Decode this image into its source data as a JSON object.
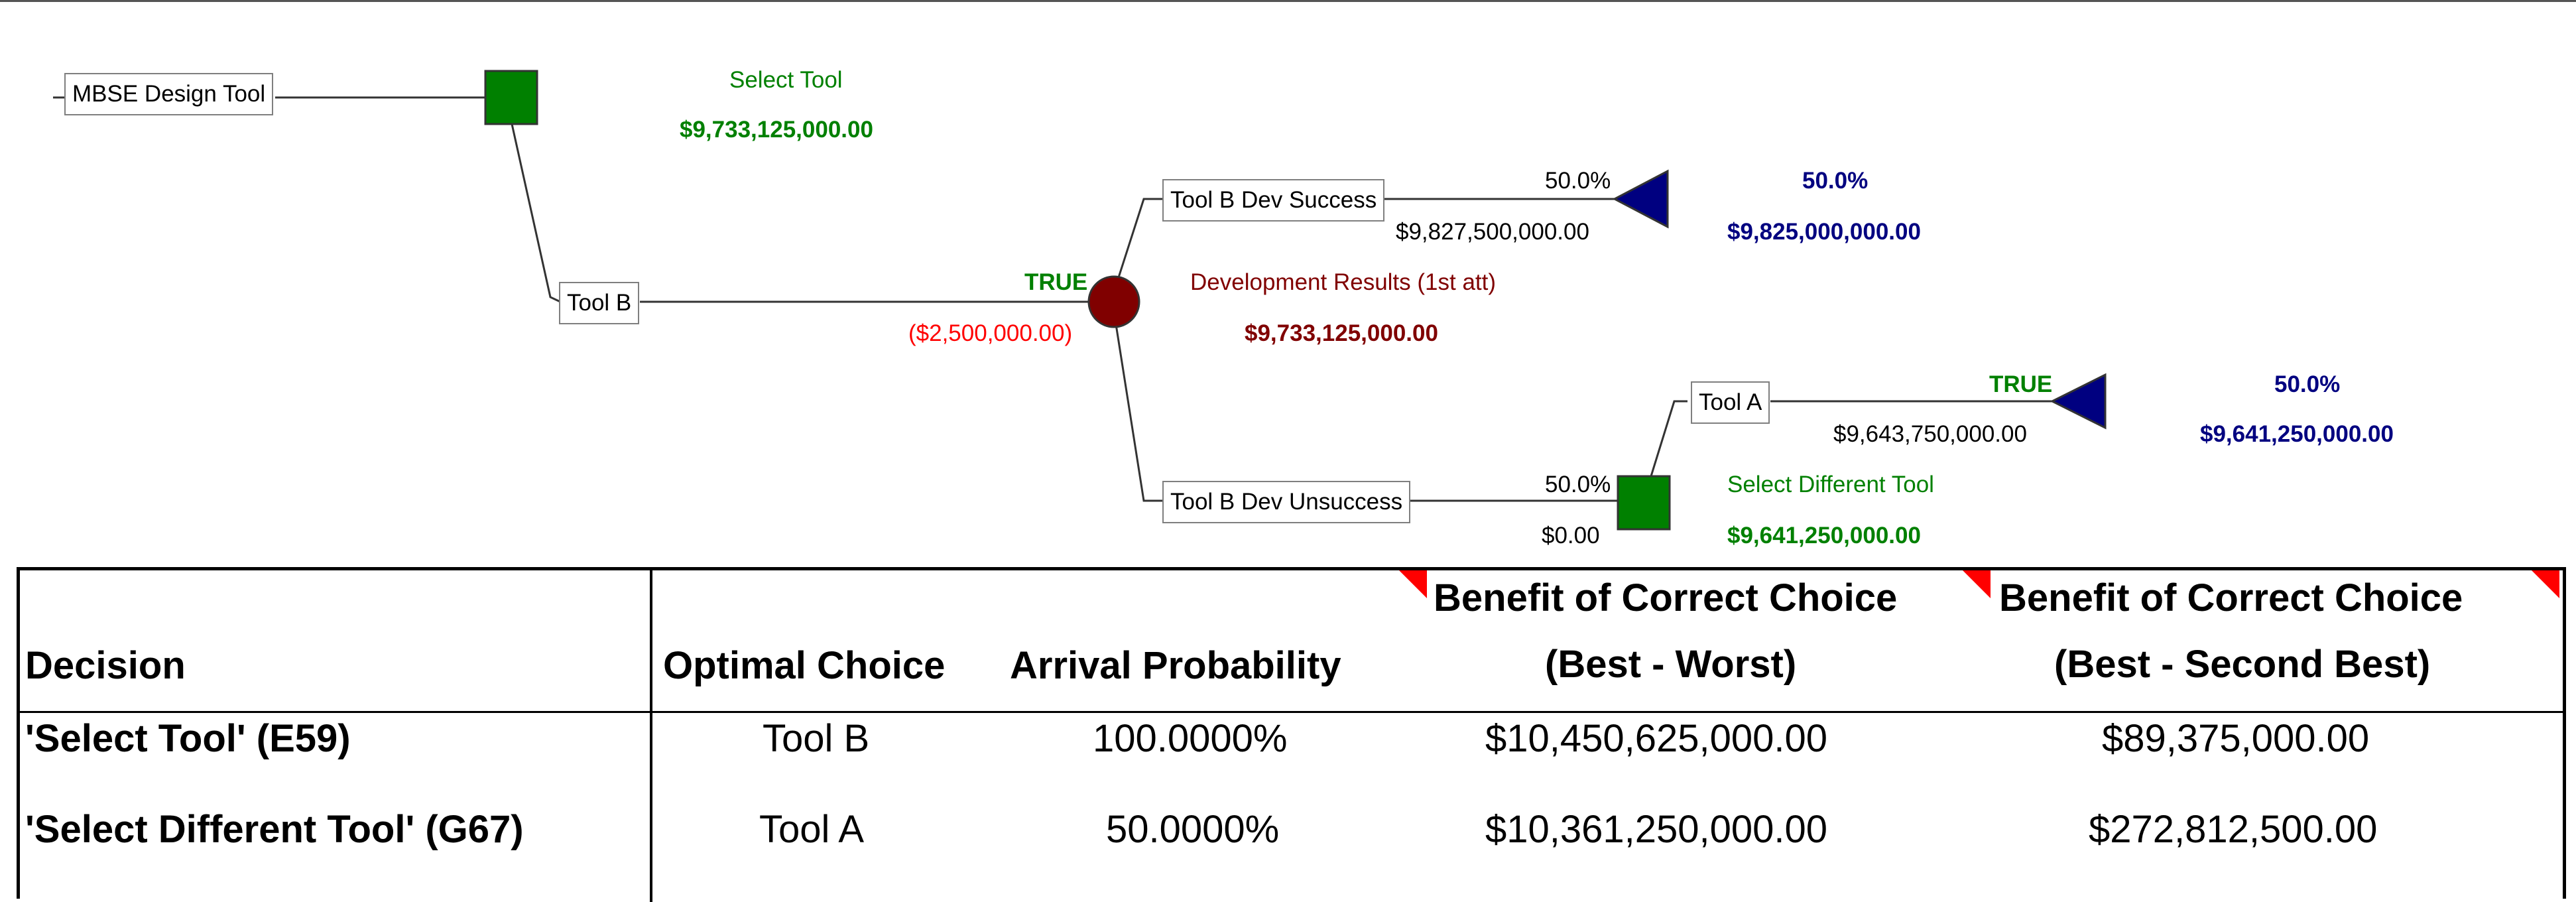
{
  "tree": {
    "root": {
      "label": "MBSE Design Tool"
    },
    "decision1": {
      "name": "Select Tool",
      "value": "$9,733,125,000.00",
      "color": "#008000"
    },
    "branch_tool_b": {
      "label": "Tool B",
      "flag": "TRUE",
      "cost": "($2,500,000.00)"
    },
    "chance": {
      "name": "Development Results (1st att)",
      "value": "$9,733,125,000.00",
      "color": "#800000"
    },
    "branch_success": {
      "label": "Tool B Dev Success",
      "prob": "50.0%",
      "payoff": "$9,827,500,000.00",
      "end_prob": "50.0%",
      "end_value": "$9,825,000,000.00"
    },
    "branch_unsuccess": {
      "label": "Tool B Dev Unsuccess",
      "prob": "50.0%",
      "payoff": "$0.00"
    },
    "decision2": {
      "name": "Select Different Tool",
      "value": "$9,641,250,000.00"
    },
    "branch_tool_a": {
      "label": "Tool A",
      "flag": "TRUE",
      "payoff": "$9,643,750,000.00",
      "end_prob": "50.0%",
      "end_value": "$9,641,250,000.00"
    },
    "colors": {
      "decision_node": "#008000",
      "chance_node": "#800000",
      "end_node": "#000080"
    }
  },
  "table": {
    "headers": {
      "decision": "Decision",
      "optimal": "Optimal Choice",
      "arrival": "Arrival Probability",
      "benefit1_line1": "Benefit of Correct Choice",
      "benefit1_line2": "(Best - Worst)",
      "benefit2_line1": "Benefit of Correct Choice",
      "benefit2_line2": "(Best - Second Best)"
    },
    "rows": [
      {
        "decision": "'Select Tool' (E59)",
        "optimal": "Tool B",
        "arrival": "100.0000%",
        "benefit_bw": "$10,450,625,000.00",
        "benefit_bsb": "$89,375,000.00"
      },
      {
        "decision": "'Select Different Tool' (G67)",
        "optimal": "Tool A",
        "arrival": "50.0000%",
        "benefit_bw": "$10,361,250,000.00",
        "benefit_bsb": "$272,812,500.00"
      }
    ]
  }
}
